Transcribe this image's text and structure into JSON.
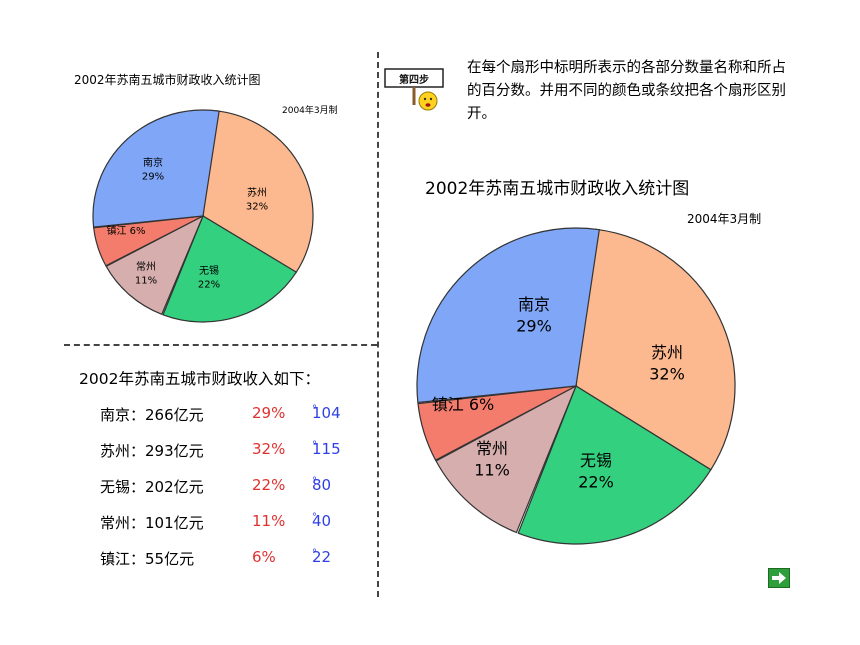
{
  "small_chart": {
    "title": "2002年苏南五城市财政收入统计图",
    "date": "2004年3月制"
  },
  "large_chart": {
    "title": "2002年苏南五城市财政收入统计图",
    "date": "2004年3月制"
  },
  "instruction": {
    "sign_label": "第四步",
    "text": "在每个扇形中标明所表示的各部分数量名称和所占的百分数。并用不同的颜色或条纹把各个扇形区别开。"
  },
  "income": {
    "heading": "2002年苏南五城市财政收入如下：",
    "rows": [
      {
        "city": "南京：266亿元",
        "pct": "29%",
        "deg": "104"
      },
      {
        "city": "苏州：293亿元",
        "pct": "32%",
        "deg": "115"
      },
      {
        "city": "无锡：202亿元",
        "pct": "22%",
        "deg": "80"
      },
      {
        "city": "常州：101亿元",
        "pct": "11%",
        "deg": "40"
      },
      {
        "city": "镇江：55亿元",
        "pct": "6%",
        "deg": "22"
      }
    ],
    "degree_symbol": "°"
  },
  "chart_data": {
    "type": "pie",
    "title": "2002年苏南五城市财政收入统计图",
    "subtitle": "2004年3月制",
    "series": [
      {
        "name": "南京",
        "pct": "29%",
        "value": 266,
        "degrees": 104,
        "color": "#7fa6f7"
      },
      {
        "name": "苏州",
        "pct": "32%",
        "value": 293,
        "degrees": 115,
        "color": "#fcb88e"
      },
      {
        "name": "无锡",
        "pct": "22%",
        "value": 202,
        "degrees": 80,
        "color": "#33d17f"
      },
      {
        "name": "常州",
        "pct": "11%",
        "value": 101,
        "degrees": 40,
        "color": "#d6aeae"
      },
      {
        "name": "镇江",
        "pct": "6%",
        "value": 55,
        "degrees": 22,
        "color": "#f47c6c"
      }
    ],
    "legend": "none",
    "grid": false
  },
  "colors": {
    "text_red": "#e23030",
    "text_blue": "#2f3fe8",
    "button_green": "#2e9e3a"
  },
  "icons": {
    "next": "right-arrow-icon"
  }
}
